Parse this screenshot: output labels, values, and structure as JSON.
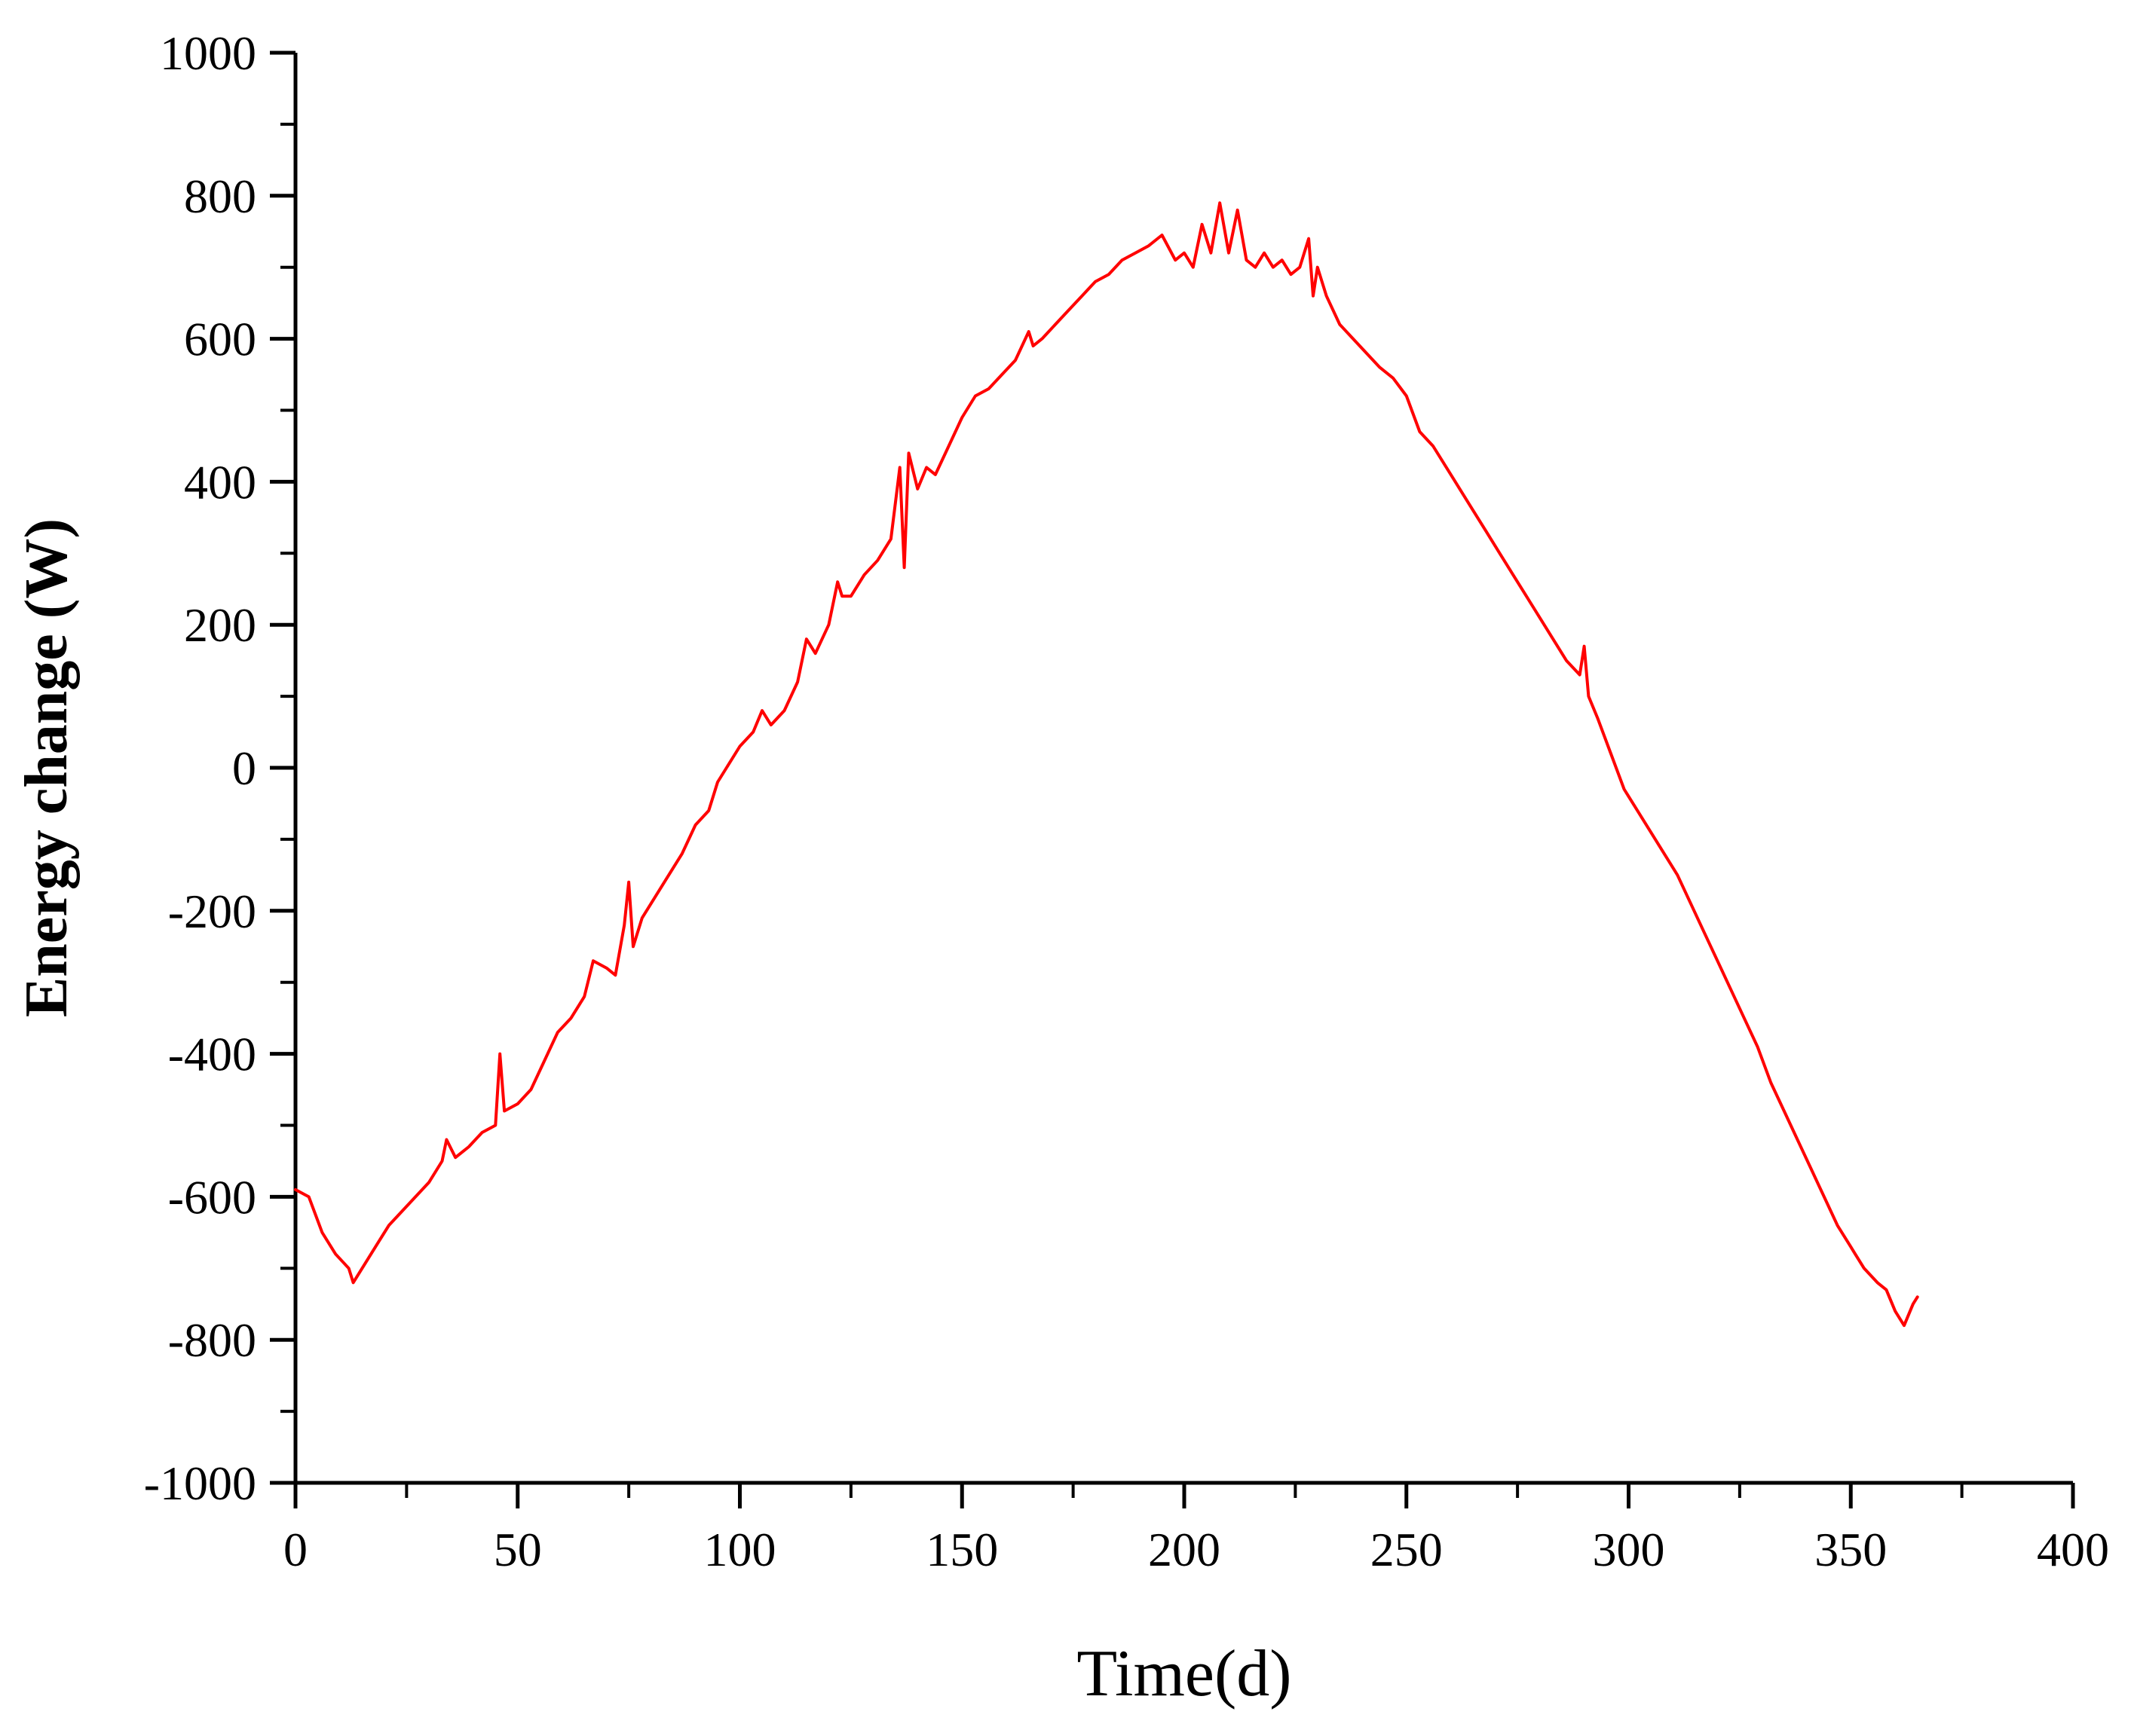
{
  "chart_data": {
    "type": "line",
    "xlabel": "Time(d)",
    "ylabel": "Energy change (W)",
    "xlim": [
      0,
      400
    ],
    "ylim": [
      -1000,
      1000
    ],
    "xticks": [
      0,
      50,
      100,
      150,
      200,
      250,
      300,
      350,
      400
    ],
    "xtick_labels": [
      "0",
      "50",
      "100",
      "150",
      "200",
      "250",
      "300",
      "350",
      "400"
    ],
    "yticks": [
      -1000,
      -800,
      -600,
      -400,
      -200,
      0,
      200,
      400,
      600,
      800,
      1000
    ],
    "ytick_labels": [
      "-1000",
      "-800",
      "-600",
      "-400",
      "-200",
      "0",
      "200",
      "400",
      "600",
      "800",
      "1000"
    ],
    "grid": false,
    "legend": "none",
    "series": [
      {
        "color": "#ff0000",
        "x": [
          0,
          3,
          6,
          9,
          12,
          13,
          15,
          18,
          21,
          24,
          27,
          30,
          33,
          34,
          36,
          39,
          42,
          45,
          46,
          47,
          50,
          53,
          56,
          59,
          62,
          65,
          67,
          70,
          72,
          74,
          75,
          76,
          78,
          81,
          84,
          87,
          90,
          93,
          95,
          97,
          100,
          103,
          105,
          107,
          110,
          113,
          115,
          117,
          120,
          122,
          123,
          125,
          128,
          131,
          134,
          136,
          137,
          138,
          140,
          142,
          144,
          147,
          150,
          153,
          156,
          159,
          162,
          165,
          166,
          168,
          171,
          174,
          177,
          180,
          183,
          186,
          189,
          192,
          195,
          198,
          200,
          202,
          204,
          206,
          208,
          210,
          212,
          214,
          216,
          218,
          220,
          222,
          224,
          226,
          228,
          229,
          230,
          232,
          235,
          238,
          241,
          244,
          247,
          250,
          253,
          256,
          259,
          262,
          265,
          268,
          271,
          274,
          277,
          280,
          283,
          286,
          289,
          290,
          291,
          293,
          296,
          299,
          302,
          305,
          307,
          308,
          311,
          314,
          317,
          320,
          323,
          326,
          329,
          332,
          335,
          338,
          341,
          344,
          347,
          350,
          351,
          353,
          356,
          358,
          360,
          362,
          364,
          365
        ],
        "values": [
          -590,
          -600,
          -650,
          -680,
          -700,
          -720,
          -700,
          -670,
          -640,
          -620,
          -600,
          -580,
          -550,
          -520,
          -545,
          -530,
          -510,
          -500,
          -400,
          -480,
          -470,
          -450,
          -410,
          -370,
          -350,
          -320,
          -270,
          -280,
          -290,
          -220,
          -160,
          -250,
          -210,
          -180,
          -150,
          -120,
          -80,
          -60,
          -20,
          0,
          30,
          50,
          80,
          60,
          80,
          120,
          180,
          160,
          200,
          260,
          240,
          240,
          270,
          290,
          320,
          420,
          280,
          440,
          390,
          420,
          410,
          450,
          490,
          520,
          530,
          550,
          570,
          610,
          590,
          600,
          620,
          640,
          660,
          680,
          690,
          710,
          720,
          730,
          745,
          710,
          720,
          700,
          760,
          720,
          790,
          720,
          780,
          710,
          700,
          720,
          700,
          710,
          690,
          700,
          740,
          660,
          700,
          660,
          620,
          600,
          580,
          560,
          545,
          520,
          470,
          450,
          420,
          390,
          360,
          330,
          300,
          270,
          240,
          210,
          180,
          150,
          130,
          170,
          100,
          70,
          20,
          -30,
          -60,
          -90,
          -110,
          -120,
          -150,
          -190,
          -230,
          -270,
          -310,
          -350,
          -390,
          -440,
          -480,
          -520,
          -560,
          -600,
          -640,
          -670,
          -680,
          -700,
          -720,
          -730,
          -760,
          -780,
          -750,
          -740
        ]
      }
    ]
  }
}
